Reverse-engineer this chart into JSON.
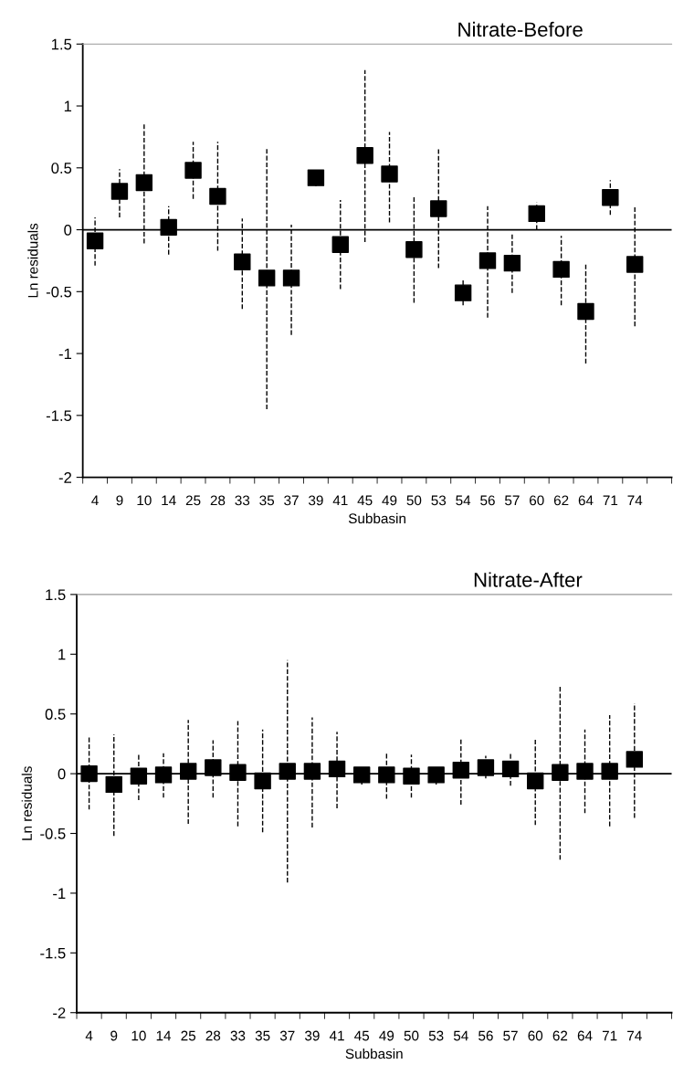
{
  "chart_data": [
    {
      "type": "scatter",
      "title": "Nitrate-Before",
      "xlabel": "Subbasin",
      "ylabel": "Ln residuals",
      "categories": [
        "4",
        "9",
        "10",
        "14",
        "25",
        "28",
        "33",
        "35",
        "37",
        "39",
        "41",
        "45",
        "49",
        "50",
        "53",
        "54",
        "56",
        "57",
        "60",
        "62",
        "64",
        "71",
        "74"
      ],
      "series": [
        {
          "color": "#000000",
          "values": [
            -0.09,
            0.31,
            0.38,
            0.02,
            0.48,
            0.27,
            -0.26,
            -0.39,
            -0.39,
            0.42,
            -0.12,
            0.6,
            0.45,
            -0.16,
            0.17,
            -0.51,
            -0.25,
            -0.27,
            0.13,
            -0.32,
            -0.66,
            0.26,
            -0.28
          ],
          "errors": [
            [
              -0.29,
              0.1
            ],
            [
              0.1,
              0.49
            ],
            [
              -0.11,
              0.86
            ],
            [
              -0.2,
              0.19
            ],
            [
              0.25,
              0.71
            ],
            [
              -0.17,
              0.71
            ],
            [
              -0.64,
              0.09
            ],
            [
              -1.45,
              0.66
            ],
            [
              -0.85,
              0.04
            ],
            [
              0.35,
              0.47
            ],
            [
              -0.48,
              0.24
            ],
            [
              -0.1,
              1.29
            ],
            [
              0.06,
              0.79
            ],
            [
              -0.59,
              0.27
            ],
            [
              -0.31,
              0.65
            ],
            [
              -0.61,
              -0.4
            ],
            [
              -0.71,
              0.19
            ],
            [
              -0.51,
              -0.03
            ],
            [
              0.0,
              0.22
            ],
            [
              -0.61,
              -0.05
            ],
            [
              -1.08,
              -0.27
            ],
            [
              0.12,
              0.4
            ],
            [
              -0.78,
              0.19
            ]
          ]
        }
      ],
      "ylim": [
        -2,
        1.5
      ],
      "yticks": [
        -2,
        -1.5,
        -1,
        -0.5,
        0,
        0.5,
        1,
        1.5
      ],
      "marker": "square",
      "line_style": "dashed",
      "grid": false,
      "legend": false,
      "ref_lines": [
        {
          "axis": "y",
          "value": 0,
          "color": "#000000"
        }
      ]
    },
    {
      "type": "scatter",
      "title": "Nitrate-After",
      "xlabel": "Subbasin",
      "ylabel": "Ln residuals",
      "categories": [
        "4",
        "9",
        "10",
        "14",
        "25",
        "28",
        "33",
        "35",
        "37",
        "39",
        "41",
        "45",
        "49",
        "50",
        "53",
        "54",
        "56",
        "57",
        "60",
        "62",
        "64",
        "71",
        "74"
      ],
      "series": [
        {
          "color": "#000000",
          "values": [
            0.0,
            -0.09,
            -0.02,
            -0.01,
            0.02,
            0.05,
            0.01,
            -0.06,
            0.02,
            0.02,
            0.04,
            -0.01,
            -0.01,
            -0.02,
            -0.01,
            0.03,
            0.05,
            0.04,
            -0.06,
            0.01,
            0.02,
            0.02,
            0.12
          ],
          "errors": [
            [
              -0.3,
              0.31
            ],
            [
              -0.52,
              0.33
            ],
            [
              -0.22,
              0.17
            ],
            [
              -0.2,
              0.17
            ],
            [
              -0.42,
              0.45
            ],
            [
              -0.2,
              0.28
            ],
            [
              -0.44,
              0.44
            ],
            [
              -0.49,
              0.37
            ],
            [
              -0.91,
              0.95
            ],
            [
              -0.45,
              0.47
            ],
            [
              -0.29,
              0.35
            ],
            [
              -0.09,
              0.05
            ],
            [
              -0.21,
              0.18
            ],
            [
              -0.2,
              0.16
            ],
            [
              -0.09,
              0.05
            ],
            [
              -0.26,
              0.3
            ],
            [
              -0.04,
              0.15
            ],
            [
              -0.1,
              0.18
            ],
            [
              -0.43,
              0.29
            ],
            [
              -0.72,
              0.73
            ],
            [
              -0.33,
              0.37
            ],
            [
              -0.44,
              0.49
            ],
            [
              -0.37,
              0.59
            ]
          ]
        }
      ],
      "ylim": [
        -2,
        1.5
      ],
      "yticks": [
        -2,
        -1.5,
        -1,
        -0.5,
        0,
        0.5,
        1,
        1.5
      ],
      "marker": "square",
      "line_style": "dashed",
      "grid": false,
      "legend": false,
      "ref_lines": [
        {
          "axis": "y",
          "value": 0,
          "color": "#000000"
        }
      ]
    }
  ]
}
